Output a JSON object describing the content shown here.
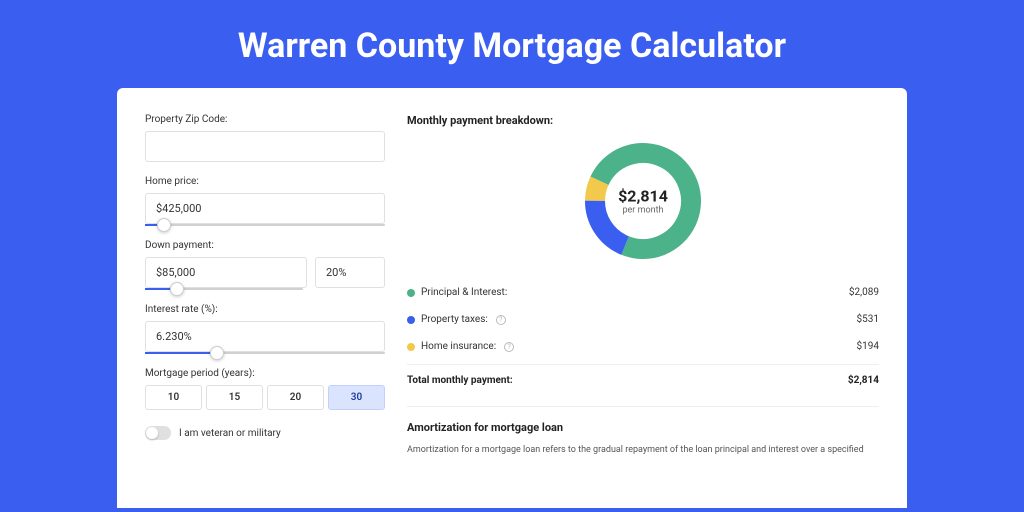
{
  "title": "Warren County Mortgage Calculator",
  "colors": {
    "bg": "#3a5ef0",
    "principal": "#4bb28a",
    "taxes": "#3a5ef0",
    "insurance": "#f2c94c"
  },
  "form": {
    "zip": {
      "label": "Property Zip Code:",
      "value": ""
    },
    "price": {
      "label": "Home price:",
      "value": "$425,000",
      "slider_pct": 8
    },
    "down": {
      "label": "Down payment:",
      "value": "$85,000",
      "pct": "20%",
      "slider_pct": 20
    },
    "rate": {
      "label": "Interest rate (%):",
      "value": "6.230%",
      "slider_pct": 30
    },
    "period": {
      "label": "Mortgage period (years):",
      "options": [
        "10",
        "15",
        "20",
        "30"
      ],
      "active": 3
    },
    "veteran": {
      "label": "I am veteran or military",
      "on": false
    }
  },
  "breakdown": {
    "title": "Monthly payment breakdown:",
    "donut": {
      "value": "$2,814",
      "sub": "per month",
      "segments": [
        {
          "color": "#4bb28a",
          "pct": 74
        },
        {
          "color": "#3a5ef0",
          "pct": 19
        },
        {
          "color": "#f2c94c",
          "pct": 7
        }
      ]
    },
    "legend": [
      {
        "label": "Principal & Interest:",
        "amount": "$2,089",
        "color": "#4bb28a",
        "info": false
      },
      {
        "label": "Property taxes:",
        "amount": "$531",
        "color": "#3a5ef0",
        "info": true
      },
      {
        "label": "Home insurance:",
        "amount": "$194",
        "color": "#f2c94c",
        "info": true
      }
    ],
    "total": {
      "label": "Total monthly payment:",
      "amount": "$2,814"
    }
  },
  "amort": {
    "title": "Amortization for mortgage loan",
    "text": "Amortization for a mortgage loan refers to the gradual repayment of the loan principal and interest over a specified"
  }
}
